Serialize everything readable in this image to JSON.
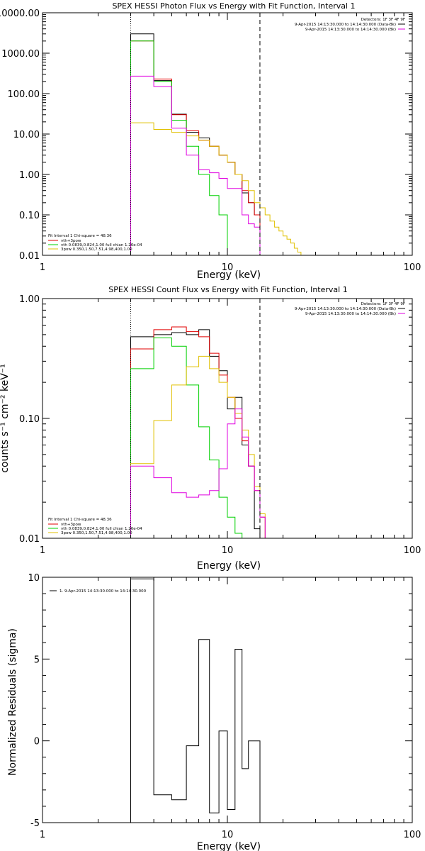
{
  "figure": {
    "background": "#ffffff",
    "axis_color": "#000000"
  },
  "chart_data": [
    {
      "id": "photon",
      "type": "line",
      "title": "SPEX HESSI Photon Flux vs Energy with Fit Function, Interval 1",
      "xlabel": "Energy (keV)",
      "ylabel": "",
      "xscale": "log",
      "yscale": "log",
      "xlim": [
        1,
        100
      ],
      "ylim": [
        0.01,
        10000
      ],
      "xticks": [
        1,
        10,
        100
      ],
      "xtick_labels": [
        "1",
        "10",
        "100"
      ],
      "yticks": [
        0.01,
        0.1,
        1,
        10,
        100,
        1000,
        10000
      ],
      "ytick_labels": [
        "0.01",
        "0.10",
        "1.00",
        "10.00",
        "100.00",
        "1000.00",
        "10000.00"
      ],
      "energy_edges": [
        3,
        4,
        5,
        6,
        7,
        8,
        9,
        10,
        11,
        12,
        13,
        14,
        15,
        16,
        17,
        18,
        19,
        20,
        21,
        22,
        23,
        24,
        25,
        26,
        27,
        28,
        29
      ],
      "vlines": [
        {
          "x": 3,
          "style": "dotted"
        },
        {
          "x": 15,
          "style": "dashed"
        }
      ],
      "detectors_text": "Detectors: 1F 3F 4F 9F",
      "legend_top_right": [
        {
          "label": "9-Apr-2015 14:13:30.000 to 14:14:30.000 (Data-Bk)",
          "color": "#000000"
        },
        {
          "label": "9-Apr-2015 14:13:30.000 to 14:14:30.000 (Bk)",
          "color": "#e000e0"
        }
      ],
      "fit_text": "Fit Interval  1    Chi-square = 48.36",
      "legend_bottom_left": [
        {
          "label": "vth+3pow",
          "color": "#e00000"
        },
        {
          "label": "vth 0.0839,0.824,1.00  full chian 1.26e-04",
          "color": "#00d000"
        },
        {
          "label": "3pow 0.350,1.50,7.51,4.98,400,1.00",
          "color": "#e0c000"
        }
      ],
      "series": [
        {
          "color": "#000000",
          "values": [
            3000,
            210,
            31,
            11,
            8,
            5,
            3,
            2,
            1,
            0.35,
            0.2,
            0.1
          ]
        },
        {
          "color": "#e00000",
          "values": [
            2000,
            230,
            30,
            12,
            7,
            5,
            3,
            2,
            1,
            0.4,
            0.2,
            0.1
          ]
        },
        {
          "color": "#00d000",
          "values": [
            2000,
            200,
            22,
            5,
            1,
            0.3,
            0.1
          ]
        },
        {
          "color": "#e0c000",
          "values": [
            19,
            13,
            11,
            9,
            7,
            5,
            3,
            2,
            1,
            0.7,
            0.4,
            0.2,
            0.15,
            0.1,
            0.07,
            0.05,
            0.04,
            0.03,
            0.025,
            0.02,
            0.015,
            0.012,
            0.01
          ]
        },
        {
          "color": "#e000e0",
          "values": [
            270,
            150,
            14,
            3,
            1.3,
            1.1,
            0.8,
            0.45,
            0.45,
            0.1,
            0.06,
            0.05
          ]
        }
      ]
    },
    {
      "id": "count",
      "type": "line",
      "title": "SPEX HESSI Count Flux vs Energy with Fit Function, Interval 1",
      "xlabel": "Energy (keV)",
      "ylabel": "counts s⁻¹ cm⁻² keV⁻¹",
      "xscale": "log",
      "yscale": "log",
      "xlim": [
        1,
        100
      ],
      "ylim": [
        0.01,
        1
      ],
      "xticks": [
        1,
        10,
        100
      ],
      "xtick_labels": [
        "1",
        "10",
        "100"
      ],
      "yticks": [
        0.01,
        0.1,
        1
      ],
      "ytick_labels": [
        "0.01",
        "0.10",
        "1.00"
      ],
      "energy_edges": [
        3,
        4,
        5,
        6,
        7,
        8,
        9,
        10,
        11,
        12,
        13,
        14,
        15,
        16,
        17,
        18,
        19,
        20,
        21,
        22,
        23,
        24,
        25,
        26,
        27,
        28,
        29
      ],
      "vlines": [
        {
          "x": 3,
          "style": "dotted"
        },
        {
          "x": 15,
          "style": "dashed"
        }
      ],
      "detectors_text": "Detectors: 1F 3F 4F 9F",
      "legend_top_right": [
        {
          "label": "9-Apr-2015 14:13:30.000 to 14:14:30.000 (Data-Bk)",
          "color": "#000000"
        },
        {
          "label": "9-Apr-2015 14:13:30.000 to 14:14:30.000 (Bk)",
          "color": "#e000e0"
        }
      ],
      "fit_text": "Fit Interval  1    Chi-square = 48.36",
      "legend_bottom_left": [
        {
          "label": "vth+3pow",
          "color": "#e00000"
        },
        {
          "label": "vth 0.0839,0.824,1.00  full chian 1.26e-04",
          "color": "#00d000"
        },
        {
          "label": "3pow 0.350,1.50,7.51,4.98,400,1.00",
          "color": "#e0c000"
        }
      ],
      "series": [
        {
          "color": "#000000",
          "values": [
            0.48,
            0.5,
            0.52,
            0.5,
            0.55,
            0.33,
            0.25,
            0.12,
            0.15,
            0.06,
            0.04,
            0.012
          ]
        },
        {
          "color": "#e00000",
          "values": [
            0.38,
            0.55,
            0.58,
            0.53,
            0.48,
            0.35,
            0.23,
            0.15,
            0.1,
            0.065,
            0.04,
            0.025,
            0.015
          ]
        },
        {
          "color": "#00d000",
          "values": [
            0.26,
            0.47,
            0.4,
            0.19,
            0.085,
            0.045,
            0.022,
            0.015,
            0.011,
            0.009
          ]
        },
        {
          "color": "#e0c000",
          "values": [
            0.042,
            0.096,
            0.19,
            0.27,
            0.33,
            0.26,
            0.2,
            0.15,
            0.11,
            0.08,
            0.05,
            0.027,
            0.016,
            0.01
          ]
        },
        {
          "color": "#e000e0",
          "values": [
            0.04,
            0.032,
            0.024,
            0.022,
            0.023,
            0.025,
            0.038,
            0.09,
            0.12,
            0.07,
            0.04,
            0.025,
            0.015
          ]
        }
      ]
    },
    {
      "id": "residuals",
      "type": "line",
      "title": "",
      "xlabel": "Energy (keV)",
      "ylabel": "Normalized Residuals (sigma)",
      "xscale": "log",
      "yscale": "linear",
      "xlim": [
        1,
        100
      ],
      "ylim": [
        -5,
        10
      ],
      "xticks": [
        1,
        10,
        100
      ],
      "xtick_labels": [
        "1",
        "10",
        "100"
      ],
      "yticks": [
        -5,
        0,
        5,
        10
      ],
      "ytick_labels": [
        "-5",
        "0",
        "5",
        "10"
      ],
      "energy_edges": [
        3,
        4,
        5,
        6,
        7,
        8,
        9,
        10,
        11,
        12,
        13,
        14,
        15
      ],
      "legend_top_left": [
        {
          "label": "1. 9-Apr-2015 14:13:30.000 to 14:14:30.000",
          "color": "#000000"
        }
      ],
      "series": [
        {
          "color": "#000000",
          "values": [
            9.9,
            -3.3,
            -3.6,
            -0.3,
            6.2,
            -4.4,
            0.6,
            -4.2,
            5.6,
            -1.7,
            0.0,
            0.0
          ]
        }
      ]
    }
  ]
}
